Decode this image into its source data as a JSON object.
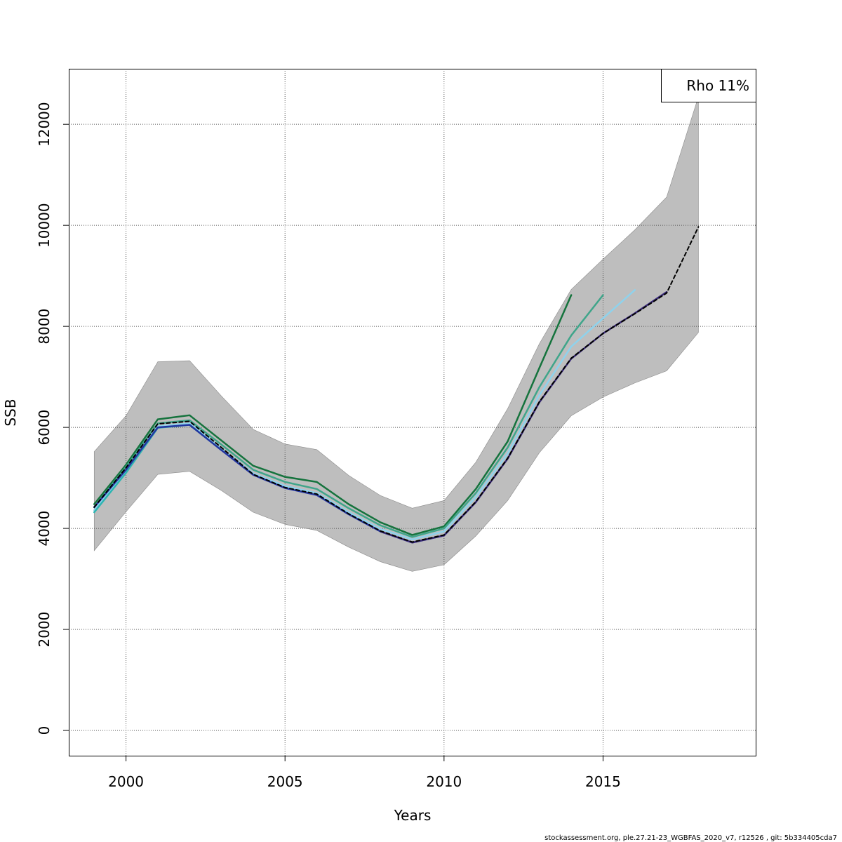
{
  "chart_data": {
    "type": "line",
    "xlabel": "Years",
    "ylabel": "SSB",
    "xlim": [
      1998.2,
      2019.8
    ],
    "ylim": [
      -500,
      13100
    ],
    "xticks": [
      2000,
      2005,
      2010,
      2015
    ],
    "yticks": [
      0,
      2000,
      4000,
      6000,
      8000,
      10000,
      12000
    ],
    "grid": true,
    "legend": {
      "text": "Rho 11%",
      "placement": "top-right"
    },
    "band": {
      "x": [
        1999,
        2000,
        2001,
        2002,
        2003,
        2004,
        2005,
        2006,
        2007,
        2008,
        2009,
        2010,
        2011,
        2012,
        2013,
        2014,
        2015,
        2016,
        2017,
        2018
      ],
      "upper": [
        5520,
        6230,
        7300,
        7320,
        6620,
        5960,
        5670,
        5560,
        5050,
        4650,
        4400,
        4550,
        5310,
        6370,
        7660,
        8730,
        9330,
        9910,
        10560,
        12550
      ],
      "lower": [
        3560,
        4330,
        5070,
        5130,
        4750,
        4320,
        4080,
        3960,
        3630,
        3340,
        3150,
        3280,
        3850,
        4550,
        5500,
        6230,
        6600,
        6880,
        7120,
        7880
      ]
    },
    "series": [
      {
        "color": "#15733d",
        "width": 2.5,
        "dashed": false,
        "x": [
          1999,
          2000,
          2001,
          2002,
          2003,
          2004,
          2005,
          2006,
          2007,
          2008,
          2009,
          2010,
          2011,
          2012,
          2013,
          2014
        ],
        "values": [
          4480,
          5260,
          6160,
          6240,
          5740,
          5240,
          5020,
          4920,
          4480,
          4120,
          3870,
          4040,
          4780,
          5720,
          7180,
          8620
        ]
      },
      {
        "color": "#3fa58a",
        "width": 2.5,
        "dashed": false,
        "x": [
          1999,
          2000,
          2001,
          2002,
          2003,
          2004,
          2005,
          2006,
          2007,
          2008,
          2009,
          2010,
          2011,
          2012,
          2013,
          2014,
          2015
        ],
        "values": [
          4420,
          5220,
          6080,
          6140,
          5660,
          5160,
          4920,
          4780,
          4400,
          4060,
          3830,
          4000,
          4700,
          5600,
          6800,
          7820,
          8620
        ]
      },
      {
        "color": "#8fd2ec",
        "width": 2.5,
        "dashed": false,
        "x": [
          1999,
          2000,
          2001,
          2002,
          2003,
          2004,
          2005,
          2006,
          2007,
          2008,
          2009,
          2010,
          2011,
          2012,
          2013,
          2014,
          2015,
          2016
        ],
        "values": [
          4360,
          5140,
          6020,
          6080,
          5580,
          5090,
          4840,
          4700,
          4320,
          3990,
          3780,
          3940,
          4620,
          5480,
          6640,
          7600,
          8160,
          8720
        ]
      },
      {
        "color": "#2db5b1",
        "width": 2.5,
        "dashed": false,
        "x": [
          1999,
          2000,
          2001,
          2002,
          2003
        ],
        "values": [
          4320,
          5100,
          5990,
          6050,
          5550
        ]
      },
      {
        "color": "#2435a0",
        "width": 2.5,
        "dashed": false,
        "x": [
          1999,
          2000,
          2001,
          2002,
          2003,
          2004,
          2005,
          2006,
          2007,
          2008,
          2009,
          2010,
          2011
        ],
        "values": [
          4420,
          5160,
          6000,
          6050,
          5550,
          5060,
          4800,
          4660,
          4280,
          3940,
          3720,
          3860,
          4520
        ]
      },
      {
        "color": "#3a2a7a",
        "width": 2.5,
        "dashed": false,
        "x": [
          2008,
          2009,
          2010,
          2011,
          2012,
          2013,
          2014,
          2015,
          2016,
          2017
        ],
        "values": [
          3940,
          3720,
          3860,
          4520,
          5380,
          6500,
          7360,
          7860,
          8260,
          8680
        ]
      },
      {
        "color": "#000000",
        "width": 2,
        "dashed": true,
        "x": [
          1999,
          2000,
          2001,
          2002,
          2003,
          2004,
          2005,
          2006,
          2007,
          2008,
          2009,
          2010,
          2011,
          2012,
          2013,
          2014,
          2015,
          2016,
          2017,
          2018
        ],
        "values": [
          4420,
          5200,
          6070,
          6120,
          5600,
          5070,
          4810,
          4680,
          4290,
          3950,
          3730,
          3870,
          4530,
          5390,
          6510,
          7370,
          7860,
          8250,
          8660,
          9970
        ]
      }
    ]
  },
  "footer": "stockassessment.org, ple.27.21-23_WGBFAS_2020_v7, r12526 , git: 5b334405cda7"
}
